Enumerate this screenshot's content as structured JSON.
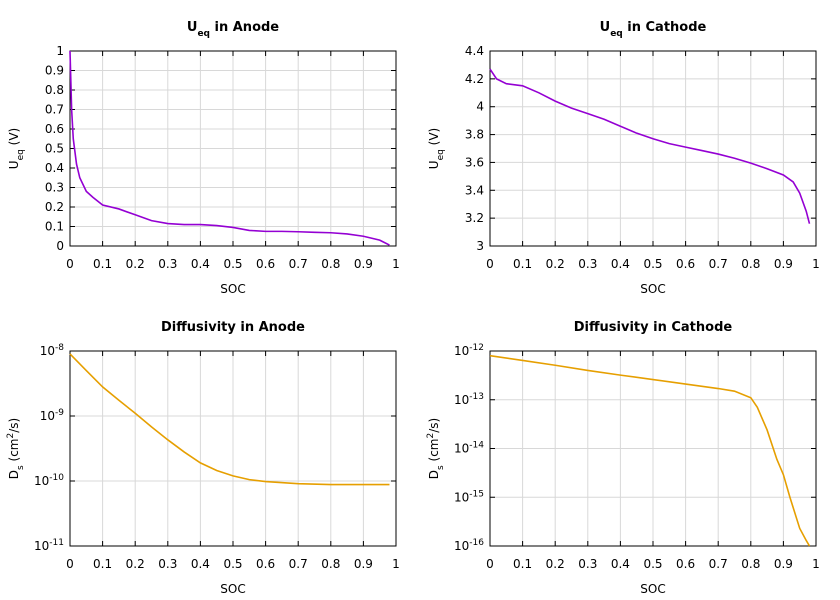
{
  "chart_data": [
    {
      "type": "line",
      "title": [
        "U",
        "eq",
        " in Anode"
      ],
      "xlabel": "SOC",
      "ylabel": [
        "U",
        "eq",
        " (V)"
      ],
      "color": "#9400d3",
      "grid": true,
      "ylog": false,
      "xlim": [
        0,
        1
      ],
      "ylim": [
        0,
        1
      ],
      "xticks": [
        0,
        0.1,
        0.2,
        0.3,
        0.4,
        0.5,
        0.6,
        0.7,
        0.8,
        0.9,
        1
      ],
      "yticks": [
        0,
        0.1,
        0.2,
        0.3,
        0.4,
        0.5,
        0.6,
        0.7,
        0.8,
        0.9,
        1
      ],
      "x": [
        0,
        0.005,
        0.01,
        0.02,
        0.03,
        0.05,
        0.07,
        0.1,
        0.15,
        0.2,
        0.25,
        0.3,
        0.35,
        0.4,
        0.45,
        0.5,
        0.55,
        0.6,
        0.65,
        0.7,
        0.75,
        0.8,
        0.85,
        0.9,
        0.95,
        0.98
      ],
      "values": [
        1.0,
        0.7,
        0.55,
        0.42,
        0.35,
        0.28,
        0.25,
        0.21,
        0.19,
        0.16,
        0.13,
        0.115,
        0.11,
        0.11,
        0.105,
        0.095,
        0.08,
        0.075,
        0.075,
        0.073,
        0.07,
        0.068,
        0.062,
        0.05,
        0.03,
        0.005
      ]
    },
    {
      "type": "line",
      "title": [
        "U",
        "eq",
        " in Cathode"
      ],
      "xlabel": "SOC",
      "ylabel": [
        "U",
        "eq",
        " (V)"
      ],
      "color": "#9400d3",
      "grid": true,
      "ylog": false,
      "xlim": [
        0,
        1
      ],
      "ylim": [
        3,
        4.4
      ],
      "xticks": [
        0,
        0.1,
        0.2,
        0.3,
        0.4,
        0.5,
        0.6,
        0.7,
        0.8,
        0.9,
        1
      ],
      "yticks": [
        3,
        3.2,
        3.4,
        3.6,
        3.8,
        4,
        4.2,
        4.4
      ],
      "x": [
        0,
        0.02,
        0.05,
        0.1,
        0.15,
        0.2,
        0.25,
        0.3,
        0.35,
        0.4,
        0.45,
        0.5,
        0.55,
        0.6,
        0.65,
        0.7,
        0.75,
        0.8,
        0.85,
        0.9,
        0.93,
        0.95,
        0.97,
        0.98
      ],
      "values": [
        4.27,
        4.2,
        4.165,
        4.15,
        4.1,
        4.04,
        3.99,
        3.95,
        3.91,
        3.86,
        3.81,
        3.77,
        3.735,
        3.71,
        3.685,
        3.66,
        3.63,
        3.595,
        3.555,
        3.51,
        3.46,
        3.38,
        3.25,
        3.16
      ]
    },
    {
      "type": "line",
      "title": "Diffusivity in Anode",
      "xlabel": "SOC",
      "ylabel": [
        "D",
        "s",
        " (cm",
        "2",
        "/s)"
      ],
      "color": "#e69f00",
      "grid": true,
      "ylog": true,
      "xlim": [
        0,
        1
      ],
      "ylim": [
        1e-11,
        1e-08
      ],
      "xticks": [
        0,
        0.1,
        0.2,
        0.3,
        0.4,
        0.5,
        0.6,
        0.7,
        0.8,
        0.9,
        1
      ],
      "yticks": [
        {
          "value": 1e-11,
          "label": [
            "10",
            "-11"
          ]
        },
        {
          "value": 1e-10,
          "label": [
            "10",
            "-10"
          ]
        },
        {
          "value": 1e-09,
          "label": [
            "10",
            "-9"
          ]
        },
        {
          "value": 1e-08,
          "label": [
            "10",
            "-8"
          ]
        }
      ],
      "x": [
        0,
        0.05,
        0.1,
        0.15,
        0.2,
        0.25,
        0.3,
        0.35,
        0.4,
        0.45,
        0.5,
        0.55,
        0.6,
        0.7,
        0.8,
        0.9,
        0.98
      ],
      "values": [
        9e-09,
        5e-09,
        2.8e-09,
        1.75e-09,
        1.1e-09,
        6.8e-10,
        4.3e-10,
        2.8e-10,
        1.9e-10,
        1.45e-10,
        1.2e-10,
        1.05e-10,
        9.8e-11,
        9.1e-11,
        8.8e-11,
        8.8e-11,
        8.8e-11
      ]
    },
    {
      "type": "line",
      "title": "Diffusivity in Cathode",
      "xlabel": "SOC",
      "ylabel": [
        "D",
        "s",
        " (cm",
        "2",
        "/s)"
      ],
      "color": "#e69f00",
      "grid": true,
      "ylog": true,
      "xlim": [
        0,
        1
      ],
      "ylim": [
        1e-16,
        1e-12
      ],
      "xticks": [
        0,
        0.1,
        0.2,
        0.3,
        0.4,
        0.5,
        0.6,
        0.7,
        0.8,
        0.9,
        1
      ],
      "yticks": [
        {
          "value": 1e-16,
          "label": [
            "10",
            "-16"
          ]
        },
        {
          "value": 1e-15,
          "label": [
            "10",
            "-15"
          ]
        },
        {
          "value": 1e-14,
          "label": [
            "10",
            "-14"
          ]
        },
        {
          "value": 1e-13,
          "label": [
            "10",
            "-13"
          ]
        },
        {
          "value": 1e-12,
          "label": [
            "10",
            "-12"
          ]
        }
      ],
      "x": [
        0,
        0.1,
        0.2,
        0.3,
        0.4,
        0.5,
        0.6,
        0.7,
        0.75,
        0.8,
        0.82,
        0.85,
        0.88,
        0.9,
        0.92,
        0.95,
        0.97,
        0.98
      ],
      "values": [
        8e-13,
        6.4e-13,
        5.1e-13,
        4e-13,
        3.2e-13,
        2.6e-13,
        2.1e-13,
        1.7e-13,
        1.5e-13,
        1.1e-13,
        7e-14,
        2.4e-14,
        6e-15,
        2.9e-15,
        1e-15,
        2.3e-16,
        1.3e-16,
        1e-16
      ]
    }
  ]
}
